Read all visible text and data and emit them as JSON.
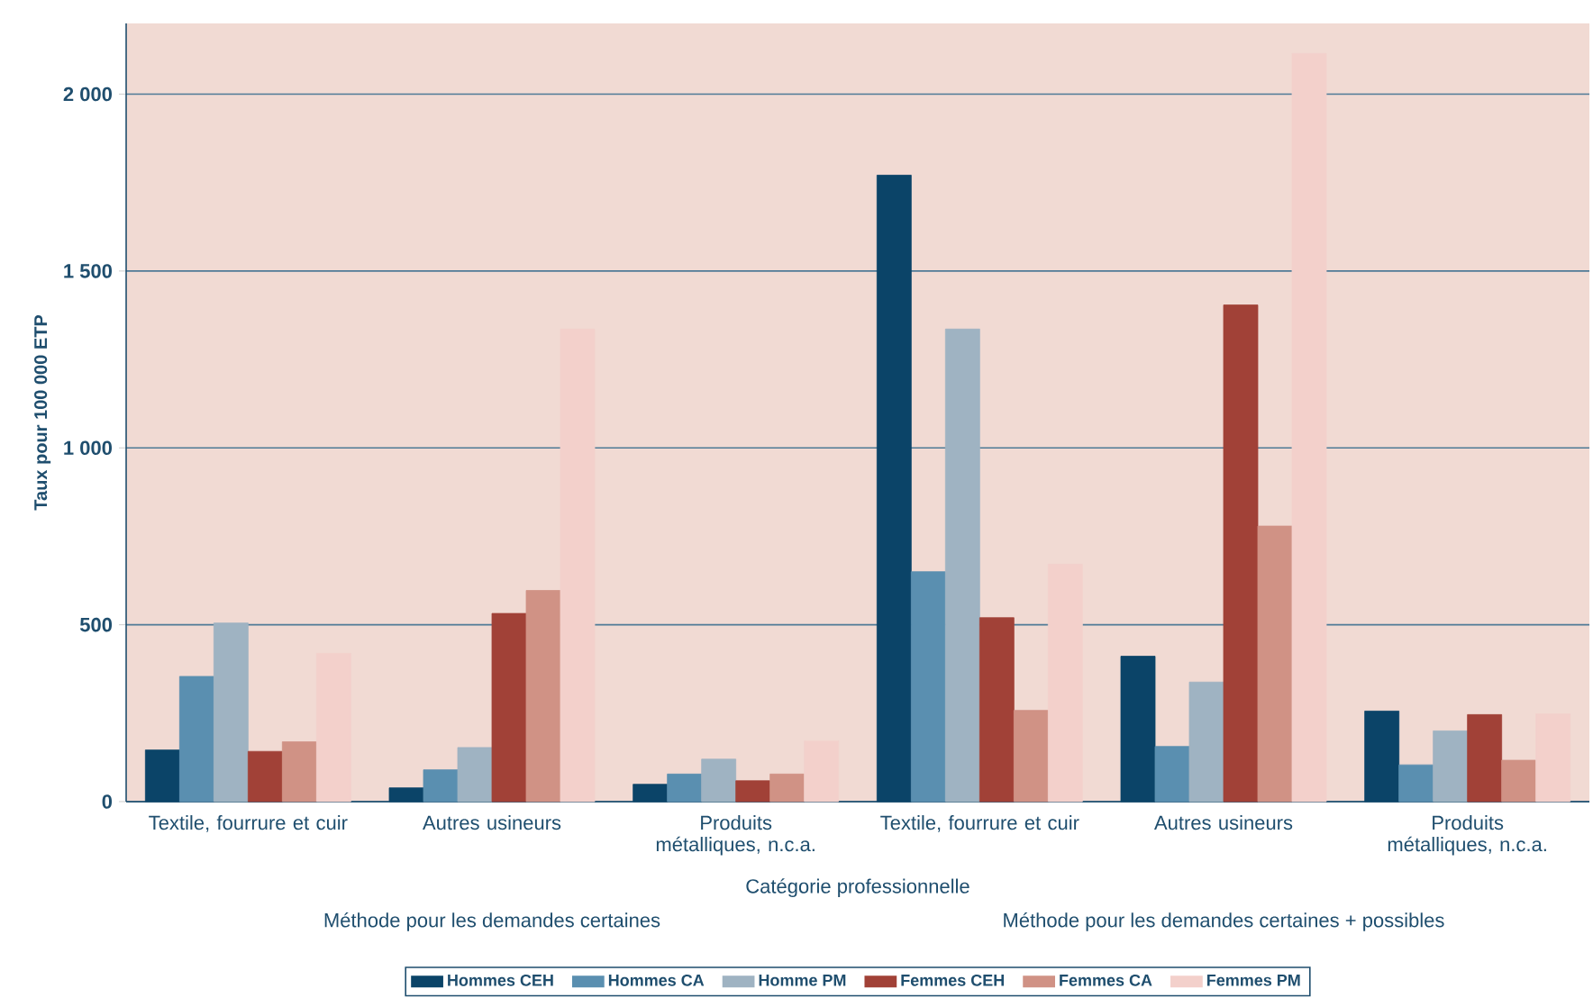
{
  "chart_data": {
    "type": "bar",
    "xlabel": "Catégorie professionnelle",
    "ylabel": "Taux pour 100 000 ETP",
    "categories": [
      "Textile, fourrure et cuir",
      "Autres usineurs",
      "Produits métalliques, n.c.a.",
      "Textile, fourrure et cuir",
      "Autres usineurs",
      "Produits métalliques, n.c.a."
    ],
    "series": [
      {
        "name": "Hommes CEH",
        "color": "#0b4468",
        "values": [
          146,
          39,
          49,
          1771,
          411,
          256
        ]
      },
      {
        "name": "Hommes CA",
        "color": "#5a8fb0",
        "values": [
          354,
          90,
          78,
          650,
          156,
          104
        ]
      },
      {
        "name": "Homme PM",
        "color": "#9fb3c2",
        "values": [
          505,
          153,
          120,
          1336,
          338,
          200
        ]
      },
      {
        "name": "Femmes CEH",
        "color": "#a14137",
        "values": [
          142,
          532,
          59,
          520,
          1404,
          246
        ]
      },
      {
        "name": "Femmes CA",
        "color": "#d09285",
        "values": [
          169,
          597,
          78,
          258,
          779,
          117
        ]
      },
      {
        "name": "Femmes PM",
        "color": "#f3d0cb",
        "values": [
          419,
          1336,
          171,
          671,
          2115,
          248
        ]
      }
    ],
    "ylim": [
      0,
      2200
    ],
    "yticks": [
      0,
      500,
      {
        "value": 1000,
        "label": "1 000"
      },
      {
        "value": 1500,
        "label": "1 500"
      },
      {
        "value": 2000,
        "label": "2 000"
      }
    ],
    "grid": "y",
    "legend": "bottom",
    "annotations": [
      "Méthode pour les demandes certaines",
      "Méthode pour les demandes certaines + possibles"
    ]
  }
}
